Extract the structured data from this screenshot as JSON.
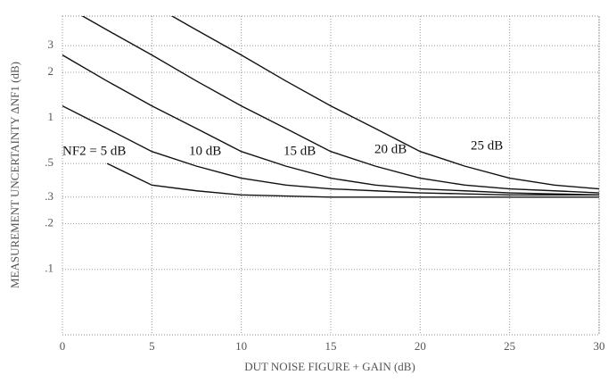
{
  "chart_data": {
    "type": "line",
    "xlabel": "DUT NOISE FIGURE + GAIN (dB)",
    "ylabel": "MEASUREMENT UNCERTAINTY ΔNF1 (dB)",
    "x": [
      0,
      2.5,
      5,
      7.5,
      10,
      12.5,
      15,
      17.5,
      20,
      22.5,
      25,
      27.5,
      30
    ],
    "series": [
      {
        "name": "NF2 = 5 dB",
        "color": "#111111",
        "values": [
          null,
          0.5,
          0.36,
          0.33,
          0.31,
          0.305,
          0.3,
          0.3,
          0.3,
          0.3,
          0.3,
          0.3,
          0.3
        ]
      },
      {
        "name": "10 dB",
        "color": "#111111",
        "values": [
          1.2,
          0.85,
          0.6,
          0.48,
          0.4,
          0.36,
          0.34,
          0.33,
          0.32,
          0.315,
          0.31,
          0.31,
          0.31
        ]
      },
      {
        "name": "15 dB",
        "color": "#111111",
        "values": [
          2.6,
          1.75,
          1.2,
          0.85,
          0.6,
          0.48,
          0.4,
          0.36,
          0.34,
          0.33,
          0.32,
          0.315,
          0.31
        ]
      },
      {
        "name": "20 dB",
        "color": "#111111",
        "values": [
          5.6,
          3.8,
          2.6,
          1.75,
          1.2,
          0.85,
          0.6,
          0.48,
          0.4,
          0.36,
          0.34,
          0.33,
          0.32
        ]
      },
      {
        "name": "25 dB",
        "color": "#111111",
        "values": [
          null,
          null,
          5.6,
          3.8,
          2.6,
          1.75,
          1.2,
          0.85,
          0.6,
          0.48,
          0.4,
          0.36,
          0.34
        ]
      }
    ],
    "xlim": [
      0,
      30
    ],
    "xticks": [
      0,
      5,
      10,
      15,
      20,
      25,
      30
    ],
    "ylim": [
      0.037,
      4.7
    ],
    "ylog": true,
    "yticks": [
      3,
      2,
      1,
      {
        "value": 0.5,
        "label": ".5"
      },
      {
        "value": 0.3,
        "label": ".3"
      },
      {
        "value": 0.2,
        "label": ".2"
      },
      {
        "value": 0.1,
        "label": ".1"
      }
    ],
    "grid": true
  }
}
